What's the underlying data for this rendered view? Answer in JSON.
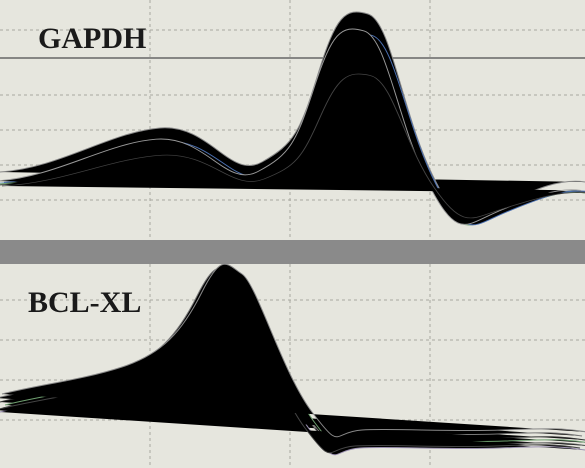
{
  "panels": [
    {
      "label": "GAPDH"
    },
    {
      "label": "BCL-XL"
    }
  ]
}
